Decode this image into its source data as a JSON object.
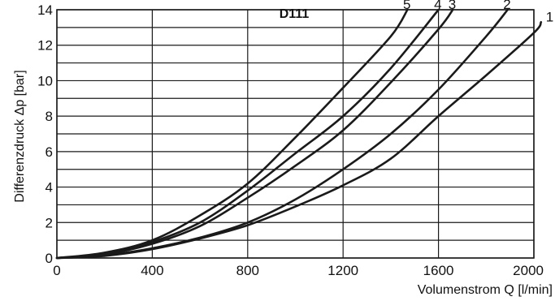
{
  "chart_data": {
    "type": "line",
    "title": "D111",
    "xlabel": "Volumenstrom Q [l/min]",
    "ylabel": "Differenzdruck Δp [bar]",
    "xlim": [
      0,
      2000
    ],
    "ylim": [
      0,
      14
    ],
    "x_ticks": [
      "0",
      "400",
      "800",
      "1200",
      "1600",
      "2000"
    ],
    "y_ticks": [
      "0",
      "2",
      "4",
      "6",
      "8",
      "10",
      "12",
      "14"
    ],
    "grid": true,
    "series": [
      {
        "name": "1",
        "x": [
          0,
          200,
          400,
          600,
          800,
          1000,
          1200,
          1400,
          1600,
          1800,
          2000,
          2030
        ],
        "y": [
          0,
          0.12,
          0.5,
          1.1,
          1.85,
          2.9,
          4.1,
          5.6,
          8.0,
          10.3,
          12.7,
          13.3
        ]
      },
      {
        "name": "2",
        "x": [
          0,
          200,
          400,
          600,
          800,
          1000,
          1200,
          1400,
          1600,
          1800,
          1890
        ],
        "y": [
          0,
          0.15,
          0.55,
          1.15,
          2.0,
          3.3,
          5.0,
          7.0,
          9.5,
          12.5,
          14.0
        ]
      },
      {
        "name": "3",
        "x": [
          0,
          200,
          400,
          600,
          800,
          1000,
          1200,
          1400,
          1600,
          1660
        ],
        "y": [
          0,
          0.2,
          0.8,
          1.8,
          3.4,
          5.2,
          7.2,
          9.9,
          12.9,
          14.0
        ]
      },
      {
        "name": "4",
        "x": [
          0,
          200,
          400,
          600,
          800,
          1000,
          1200,
          1400,
          1600
        ],
        "y": [
          0,
          0.22,
          0.9,
          2.0,
          3.8,
          5.9,
          8.0,
          10.7,
          14.0
        ]
      },
      {
        "name": "5",
        "x": [
          0,
          200,
          400,
          600,
          800,
          1000,
          1200,
          1400,
          1470
        ],
        "y": [
          0,
          0.3,
          1.0,
          2.4,
          4.2,
          6.8,
          9.6,
          12.5,
          14.0
        ]
      }
    ]
  }
}
